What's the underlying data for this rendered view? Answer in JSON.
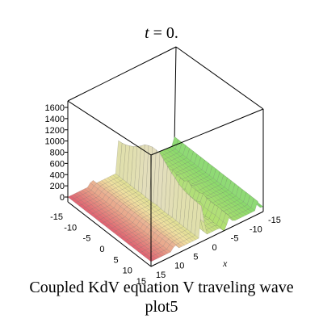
{
  "header": {
    "title_var": "t",
    "title_rest": " = 0."
  },
  "caption": {
    "line1": "Coupled KdV equation V traveling wave",
    "line2": "plot5"
  },
  "chart_data": {
    "type": "surface3d",
    "title": "t = 0.",
    "zlabel": "",
    "xlabel": "x",
    "ylabel": "",
    "z_ticks": [
      "0",
      "200",
      "400",
      "600",
      "800",
      "1000",
      "1200",
      "1400",
      "1600"
    ],
    "x_ticks": [
      "-15",
      "-10",
      "-5",
      "0",
      "5",
      "10",
      "15"
    ],
    "y_ticks": [
      "-15",
      "-10",
      "-5",
      "0",
      "5",
      "10",
      "15"
    ],
    "x_range": [
      -15,
      15
    ],
    "y_range": [
      -15,
      15
    ],
    "z_range": [
      0,
      1600
    ],
    "peak_value": 1600,
    "colormap": [
      "#e06070",
      "#f0e0a0",
      "#b0e070",
      "#7ed86a"
    ],
    "box_color": "#000000"
  }
}
